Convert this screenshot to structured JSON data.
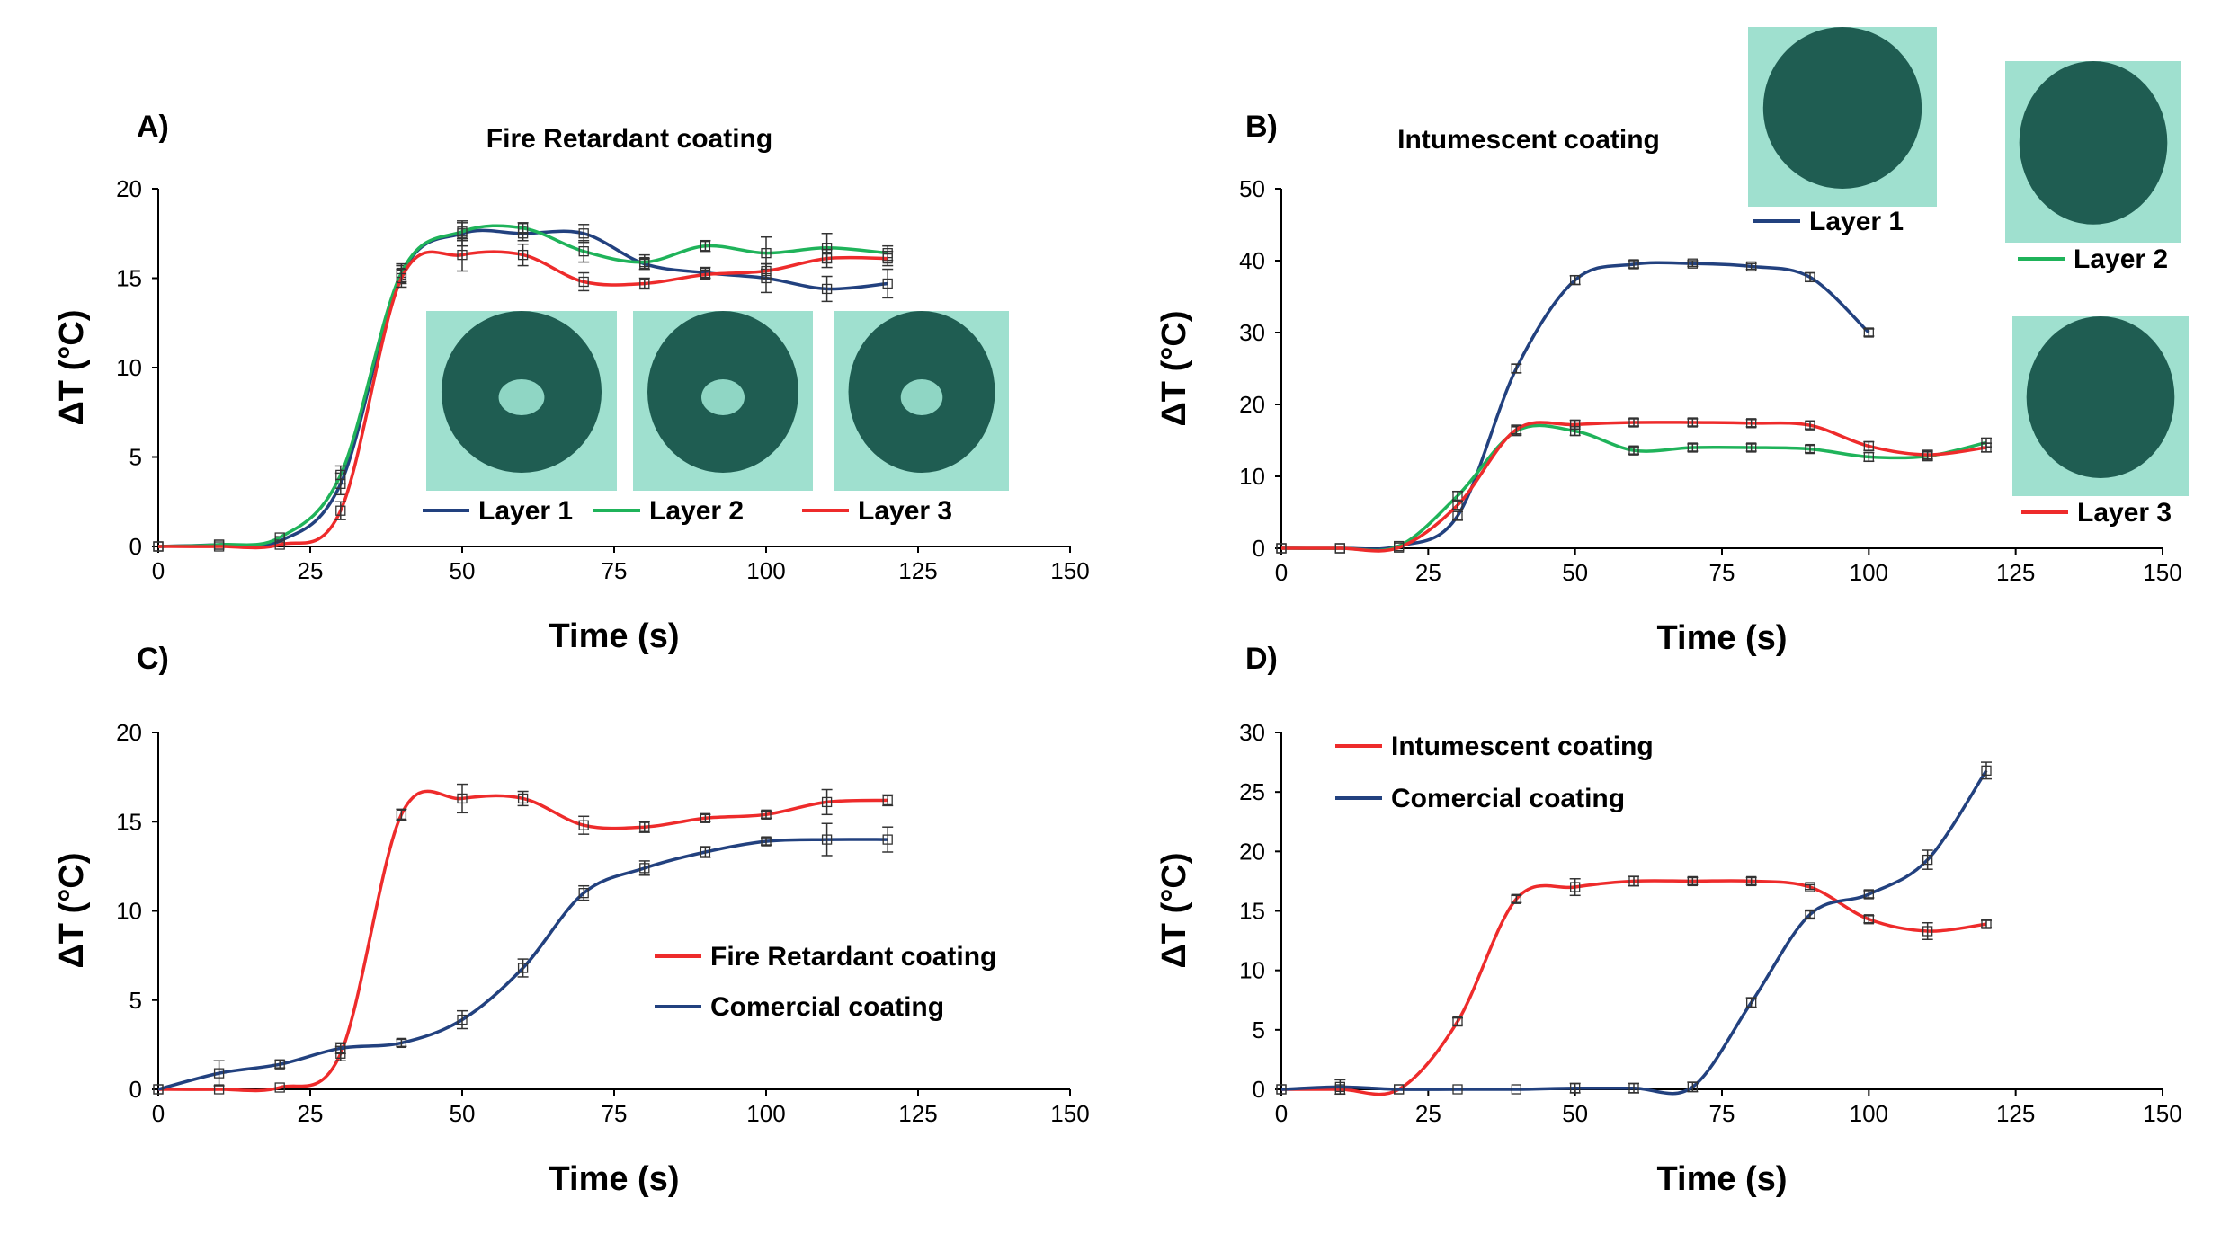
{
  "colors": {
    "blue": "#22417f",
    "green": "#1fb35a",
    "red": "#ee2b2b",
    "axis": "#000000",
    "photo": "#3aa89a"
  },
  "icons": {
    "photo": "char-sample-photo"
  },
  "chart_data": [
    {
      "id": "A",
      "type": "line",
      "panel_label": "A)",
      "title": "Fire Retardant coating",
      "xlabel": "Time (s)",
      "ylabel": "ΔT (°C)",
      "xlim": [
        0,
        150
      ],
      "ylim": [
        0,
        20
      ],
      "xticks": [
        0,
        25,
        50,
        75,
        100,
        125,
        150
      ],
      "yticks": [
        0,
        5,
        10,
        15,
        20
      ],
      "legend_position": "below-photos",
      "series": [
        {
          "name": "Layer 1",
          "color": "blue",
          "x": [
            0,
            10,
            20,
            30,
            40,
            50,
            60,
            70,
            80,
            90,
            100,
            110,
            120
          ],
          "y": [
            0,
            0.1,
            0.3,
            3.5,
            15.2,
            17.5,
            17.5,
            17.5,
            15.8,
            15.3,
            15.0,
            14.4,
            14.7
          ],
          "err": [
            0,
            0,
            0,
            0.6,
            0.5,
            0.7,
            0.4,
            0.5,
            0.3,
            0.3,
            0.8,
            0.7,
            0.8
          ]
        },
        {
          "name": "Layer 2",
          "color": "green",
          "x": [
            0,
            10,
            20,
            30,
            40,
            50,
            60,
            70,
            80,
            90,
            100,
            110,
            120
          ],
          "y": [
            0,
            0.1,
            0.5,
            4.0,
            15.3,
            17.6,
            17.8,
            16.5,
            15.9,
            16.8,
            16.4,
            16.7,
            16.4
          ],
          "err": [
            0,
            0,
            0,
            0.5,
            0.5,
            0.5,
            0.3,
            0.6,
            0.4,
            0.3,
            0.9,
            0.8,
            0.4
          ]
        },
        {
          "name": "Layer 3",
          "color": "red",
          "x": [
            0,
            10,
            20,
            30,
            40,
            50,
            60,
            70,
            80,
            90,
            100,
            110,
            120
          ],
          "y": [
            0,
            0,
            0.1,
            2.0,
            15.0,
            16.3,
            16.3,
            14.8,
            14.7,
            15.2,
            15.4,
            16.1,
            16.1
          ],
          "err": [
            0,
            0,
            0,
            0.5,
            0.5,
            0.9,
            0.6,
            0.5,
            0.3,
            0.2,
            0.4,
            0.5,
            0.4
          ]
        }
      ]
    },
    {
      "id": "B",
      "type": "line",
      "panel_label": "B)",
      "title": "Intumescent coating",
      "xlabel": "Time (s)",
      "ylabel": "ΔT (°C)",
      "xlim": [
        0,
        150
      ],
      "ylim": [
        0,
        50
      ],
      "xticks": [
        0,
        25,
        50,
        75,
        100,
        125,
        150
      ],
      "yticks": [
        0,
        10,
        20,
        30,
        40,
        50
      ],
      "legend_position": "right-with-photos",
      "series": [
        {
          "name": "Layer 1",
          "color": "blue",
          "x": [
            0,
            10,
            20,
            30,
            40,
            50,
            60,
            70,
            80,
            90,
            100
          ],
          "y": [
            0,
            0,
            0.3,
            4.5,
            25.0,
            37.3,
            39.5,
            39.6,
            39.2,
            37.7,
            30.0
          ],
          "err": [
            0,
            0,
            0,
            0.6,
            0.6,
            0.6,
            0.5,
            0.4,
            0.4,
            0.6,
            0.5
          ]
        },
        {
          "name": "Layer 2",
          "color": "green",
          "x": [
            0,
            10,
            20,
            30,
            40,
            50,
            60,
            70,
            80,
            90,
            100,
            110,
            120
          ],
          "y": [
            0,
            0,
            0.3,
            7.3,
            16.3,
            16.3,
            13.6,
            14.0,
            14.0,
            13.8,
            12.7,
            12.8,
            14.7
          ],
          "err": [
            0,
            0,
            0,
            0.6,
            0.6,
            0.6,
            0.5,
            0.5,
            0.5,
            0.5,
            0.6,
            0.6,
            0.6
          ]
        },
        {
          "name": "Layer 3",
          "color": "red",
          "x": [
            0,
            10,
            20,
            30,
            40,
            50,
            60,
            70,
            80,
            90,
            100,
            110,
            120
          ],
          "y": [
            0,
            0,
            0.1,
            6.0,
            16.5,
            17.2,
            17.5,
            17.5,
            17.4,
            17.1,
            14.2,
            13.0,
            14.0
          ],
          "err": [
            0,
            0,
            0,
            0.6,
            0.6,
            0.6,
            0.5,
            0.5,
            0.5,
            0.5,
            0.6,
            0.6,
            0.6
          ]
        }
      ]
    },
    {
      "id": "C",
      "type": "line",
      "panel_label": "C)",
      "title": "",
      "xlabel": "Time (s)",
      "ylabel": "ΔT (°C)",
      "xlim": [
        0,
        150
      ],
      "ylim": [
        0,
        20
      ],
      "xticks": [
        0,
        25,
        50,
        75,
        100,
        125,
        150
      ],
      "yticks": [
        0,
        5,
        10,
        15,
        20
      ],
      "legend_position": "center-right",
      "series": [
        {
          "name": "Fire Retardant coating",
          "color": "red",
          "x": [
            0,
            10,
            20,
            30,
            40,
            50,
            60,
            70,
            80,
            90,
            100,
            110,
            120
          ],
          "y": [
            0,
            0,
            0.1,
            2.0,
            15.4,
            16.3,
            16.3,
            14.8,
            14.7,
            15.2,
            15.4,
            16.1,
            16.2
          ],
          "err": [
            0,
            0,
            0,
            0.4,
            0.3,
            0.8,
            0.4,
            0.5,
            0.3,
            0.2,
            0.2,
            0.7,
            0.3
          ]
        },
        {
          "name": "Comercial coating",
          "color": "blue",
          "x": [
            0,
            10,
            20,
            30,
            40,
            50,
            60,
            70,
            80,
            90,
            100,
            110,
            120
          ],
          "y": [
            0,
            0.9,
            1.4,
            2.3,
            2.6,
            3.9,
            6.8,
            11.0,
            12.4,
            13.3,
            13.9,
            14.0,
            14.0
          ],
          "err": [
            0,
            0.7,
            0.2,
            0.3,
            0.2,
            0.5,
            0.5,
            0.4,
            0.4,
            0.3,
            0.2,
            0.9,
            0.7
          ]
        }
      ]
    },
    {
      "id": "D",
      "type": "line",
      "panel_label": "D)",
      "title": "",
      "xlabel": "Time (s)",
      "ylabel": "ΔT (°C)",
      "xlim": [
        0,
        150
      ],
      "ylim": [
        0,
        30
      ],
      "xticks": [
        0,
        25,
        50,
        75,
        100,
        125,
        150
      ],
      "yticks": [
        0,
        5,
        10,
        15,
        20,
        25,
        30
      ],
      "legend_position": "top-left",
      "series": [
        {
          "name": "Intumescent coating",
          "color": "red",
          "x": [
            0,
            10,
            20,
            30,
            40,
            50,
            60,
            70,
            80,
            90,
            100,
            110,
            120
          ],
          "y": [
            0,
            0,
            0,
            5.7,
            16.0,
            17.0,
            17.5,
            17.5,
            17.5,
            17.0,
            14.3,
            13.3,
            13.9
          ],
          "err": [
            0,
            0,
            0,
            0.3,
            0.3,
            0.7,
            0.4,
            0.3,
            0.3,
            0.2,
            0.3,
            0.7,
            0.3
          ]
        },
        {
          "name": "Comercial coating",
          "color": "blue",
          "x": [
            0,
            10,
            20,
            30,
            40,
            50,
            60,
            70,
            80,
            90,
            100,
            110,
            120
          ],
          "y": [
            0,
            0.2,
            0,
            0,
            0,
            0.1,
            0.1,
            0.2,
            7.3,
            14.7,
            16.4,
            19.3,
            26.8
          ],
          "err": [
            0,
            0.6,
            0,
            0,
            0,
            0.4,
            0.4,
            0.4,
            0.4,
            0.3,
            0.3,
            0.8,
            0.7
          ]
        }
      ]
    }
  ]
}
